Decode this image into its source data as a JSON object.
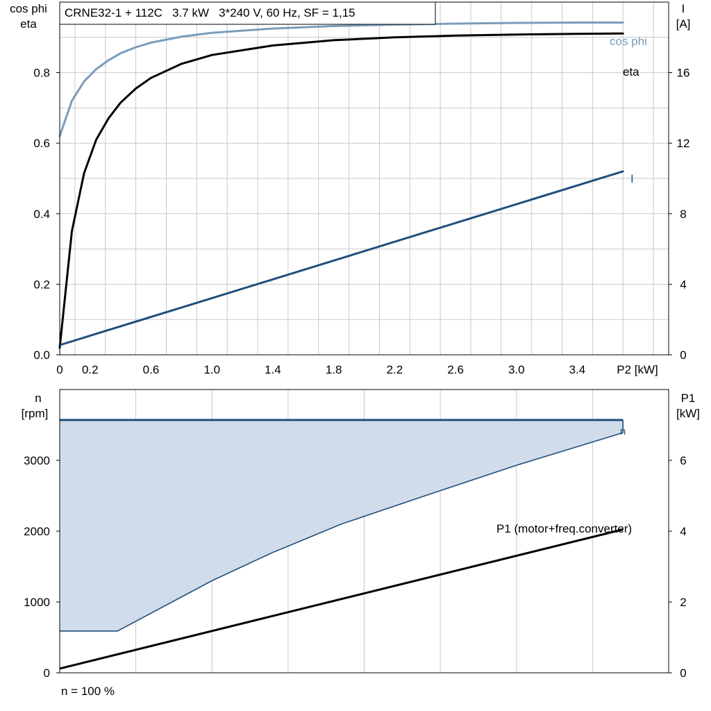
{
  "colors": {
    "cos_phi": "#7a9cbc",
    "eta": "#000000",
    "current": "#1f4e7d",
    "speed_band_fill": "#d0dcea",
    "speed_line": "#1f4e7d",
    "p1": "#000000",
    "grid": "#c8c8c8"
  },
  "chart_data": [
    {
      "type": "line",
      "title": "CRNE32-1 + 112C   3.7 kW   3*240 V, 60 Hz, SF = 1,15",
      "xlabel": "P2 [kW]",
      "ylabel": "cos phi eta",
      "ylabel_lines": [
        "cos phi",
        "eta"
      ],
      "y2label": "I [A]",
      "y2label_lines": [
        "I",
        "[A]"
      ],
      "xlim": [
        0,
        4.0
      ],
      "ylim": [
        0,
        1.0
      ],
      "y2lim": [
        0,
        20
      ],
      "x_ticks": [
        "0",
        "0.2",
        "0.6",
        "1.0",
        "1.4",
        "1.8",
        "2.2",
        "2.6",
        "3.0",
        "3.4"
      ],
      "y_ticks": [
        "0.0",
        "0.2",
        "0.4",
        "0.6",
        "0.8"
      ],
      "y2_ticks": [
        "0",
        "4",
        "8",
        "12",
        "16"
      ],
      "grid": true,
      "series": [
        {
          "name": "cos phi",
          "axis": "left",
          "x": [
            0,
            0.08,
            0.16,
            0.24,
            0.32,
            0.4,
            0.5,
            0.6,
            0.8,
            1.0,
            1.4,
            1.8,
            2.2,
            2.6,
            3.0,
            3.4,
            3.7
          ],
          "y": [
            0.62,
            0.72,
            0.775,
            0.81,
            0.835,
            0.855,
            0.872,
            0.885,
            0.902,
            0.913,
            0.925,
            0.932,
            0.936,
            0.939,
            0.941,
            0.942,
            0.942
          ]
        },
        {
          "name": "eta",
          "axis": "left",
          "x": [
            0,
            0.08,
            0.16,
            0.24,
            0.32,
            0.4,
            0.5,
            0.6,
            0.8,
            1.0,
            1.4,
            1.8,
            2.2,
            2.6,
            3.0,
            3.4,
            3.7
          ],
          "y": [
            0.02,
            0.35,
            0.515,
            0.61,
            0.67,
            0.715,
            0.755,
            0.785,
            0.825,
            0.85,
            0.877,
            0.892,
            0.9,
            0.905,
            0.908,
            0.91,
            0.911
          ]
        },
        {
          "name": "I",
          "axis": "right",
          "x": [
            0,
            3.7
          ],
          "y": [
            0.55,
            10.4
          ]
        }
      ]
    },
    {
      "type": "area",
      "xlabel": "",
      "ylabel": "n [rpm]",
      "ylabel_lines": [
        "n",
        "[rpm]"
      ],
      "y2label": "P1 [kW]",
      "y2label_lines": [
        "P1",
        "[kW]"
      ],
      "xlim": [
        0,
        4.0
      ],
      "ylim": [
        0,
        4000
      ],
      "y2lim": [
        0,
        8
      ],
      "y_ticks": [
        "0",
        "1000",
        "2000",
        "3000"
      ],
      "y2_ticks": [
        "0",
        "2",
        "4",
        "6"
      ],
      "grid": true,
      "footnote": "n = 100 %",
      "series": [
        {
          "name": "n",
          "axis": "left",
          "role": "band-top",
          "x": [
            0,
            3.7
          ],
          "y": [
            3570,
            3570
          ]
        },
        {
          "name": "",
          "axis": "left",
          "role": "band-bottom",
          "x": [
            0,
            0.38,
            1.0,
            1.4,
            1.85,
            2.4,
            3.0,
            3.7
          ],
          "y": [
            590,
            590,
            1300,
            1700,
            2100,
            2500,
            2930,
            3390
          ]
        },
        {
          "name": "P1 (motor+freq.converter)",
          "axis": "right",
          "x": [
            0,
            3.7
          ],
          "y": [
            0.12,
            4.05
          ]
        }
      ]
    }
  ]
}
